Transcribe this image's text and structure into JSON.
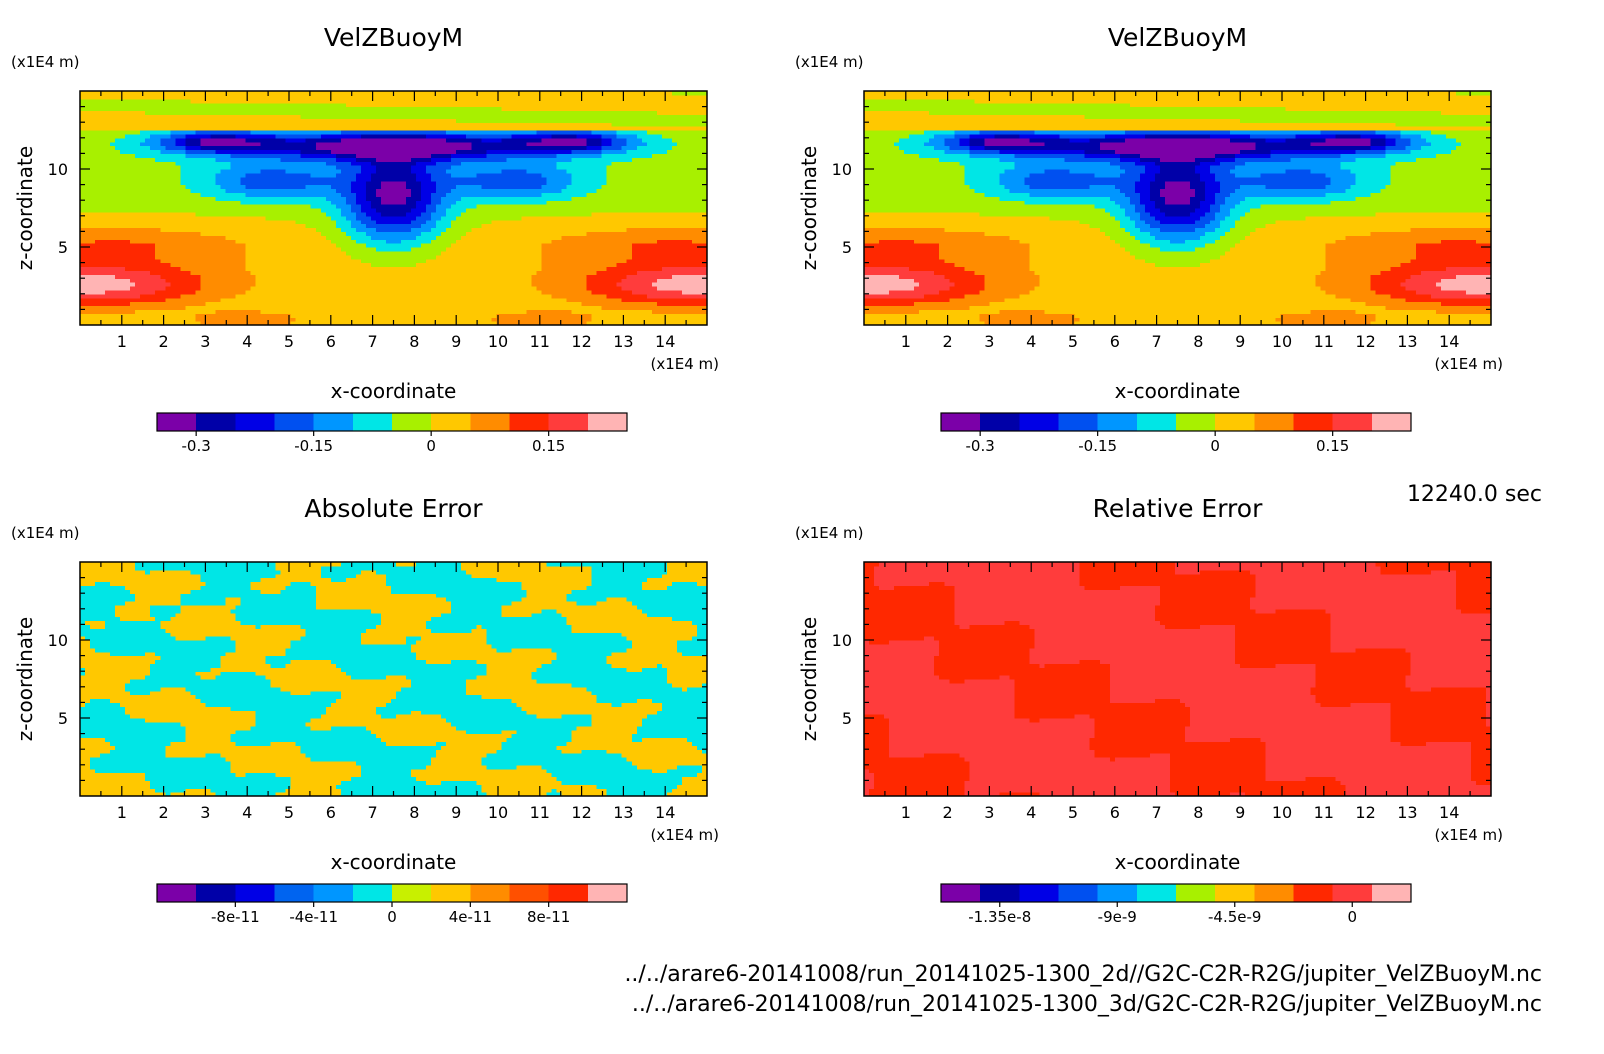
{
  "time_label": "12240.0 sec",
  "source_files": [
    "../../arare6-20141008/run_20141025-1300_2d//G2C-C2R-R2G/jupiter_VelZBuoyM.nc",
    "../../arare6-20141008/run_20141025-1300_3d/G2C-C2R-R2G/jupiter_VelZBuoyM.nc"
  ],
  "chart_data": [
    {
      "type": "heatmap",
      "title": "VelZBuoyM",
      "xlabel": "x-coordinate",
      "ylabel": "z-coordinate",
      "x_unit": "(x1E4 m)",
      "y_unit": "(x1E4 m)",
      "xlim": [
        0,
        15
      ],
      "ylim": [
        0,
        15
      ],
      "x_ticks": [
        1,
        2,
        3,
        4,
        5,
        6,
        7,
        8,
        9,
        10,
        11,
        12,
        13,
        14
      ],
      "y_ticks": [
        5,
        10
      ],
      "field": "velzbuoy",
      "colorbar": {
        "colors": [
          "#7b00a8",
          "#0000a8",
          "#0000e6",
          "#0050f0",
          "#0096ff",
          "#00e6e6",
          "#a8f000",
          "#ffc800",
          "#ff8c00",
          "#ff2800",
          "#ff3c3c",
          "#ffb4b4"
        ],
        "min": -0.35,
        "max": 0.25,
        "tick_values": [
          -0.3,
          -0.15,
          0,
          0.15
        ],
        "tick_labels": [
          "-0.3",
          "-0.15",
          "0",
          "0.15"
        ]
      }
    },
    {
      "type": "heatmap",
      "title": "VelZBuoyM",
      "xlabel": "x-coordinate",
      "ylabel": "z-coordinate",
      "x_unit": "(x1E4 m)",
      "y_unit": "(x1E4 m)",
      "xlim": [
        0,
        15
      ],
      "ylim": [
        0,
        15
      ],
      "x_ticks": [
        1,
        2,
        3,
        4,
        5,
        6,
        7,
        8,
        9,
        10,
        11,
        12,
        13,
        14
      ],
      "y_ticks": [
        5,
        10
      ],
      "field": "velzbuoy",
      "colorbar": {
        "colors": [
          "#7b00a8",
          "#0000a8",
          "#0000e6",
          "#0050f0",
          "#0096ff",
          "#00e6e6",
          "#a8f000",
          "#ffc800",
          "#ff8c00",
          "#ff2800",
          "#ff3c3c",
          "#ffb4b4"
        ],
        "min": -0.35,
        "max": 0.25,
        "tick_values": [
          -0.3,
          -0.15,
          0,
          0.15
        ],
        "tick_labels": [
          "-0.3",
          "-0.15",
          "0",
          "0.15"
        ]
      }
    },
    {
      "type": "heatmap",
      "title": "Absolute Error",
      "xlabel": "x-coordinate",
      "ylabel": "z-coordinate",
      "x_unit": "(x1E4 m)",
      "y_unit": "(x1E4 m)",
      "xlim": [
        0,
        15
      ],
      "ylim": [
        0,
        15
      ],
      "x_ticks": [
        1,
        2,
        3,
        4,
        5,
        6,
        7,
        8,
        9,
        10,
        11,
        12,
        13,
        14
      ],
      "y_ticks": [
        5,
        10
      ],
      "field": "abserror",
      "colorbar": {
        "colors": [
          "#7b00a8",
          "#0000a8",
          "#0000e6",
          "#0064f0",
          "#0096ff",
          "#00e6e6",
          "#c8f000",
          "#ffc800",
          "#ff8c00",
          "#ff5000",
          "#ff2800",
          "#ffb4b4"
        ],
        "min": -1.2e-10,
        "max": 1.2e-10,
        "tick_values": [
          -8e-11,
          -4e-11,
          0,
          4e-11,
          8e-11
        ],
        "tick_labels": [
          "-8e-11",
          "-4e-11",
          "0",
          "4e-11",
          "8e-11"
        ]
      }
    },
    {
      "type": "heatmap",
      "title": "Relative Error",
      "xlabel": "x-coordinate",
      "ylabel": "z-coordinate",
      "x_unit": "(x1E4 m)",
      "y_unit": "(x1E4 m)",
      "xlim": [
        0,
        15
      ],
      "ylim": [
        0,
        15
      ],
      "x_ticks": [
        1,
        2,
        3,
        4,
        5,
        6,
        7,
        8,
        9,
        10,
        11,
        12,
        13,
        14
      ],
      "y_ticks": [
        5,
        10
      ],
      "field": "relerror",
      "colorbar": {
        "colors": [
          "#7b00a8",
          "#0000a8",
          "#0000e6",
          "#0050f0",
          "#0096ff",
          "#00e6e6",
          "#a8f000",
          "#ffc800",
          "#ff8c00",
          "#ff2800",
          "#ff3c3c",
          "#ffb4b4"
        ],
        "min": -1.575e-08,
        "max": 2.25e-09,
        "tick_values": [
          -1.35e-08,
          -9e-09,
          -4.5e-09,
          0
        ],
        "tick_labels": [
          "-1.35e-8",
          "-9e-9",
          "-4.5e-9",
          "0"
        ]
      }
    }
  ]
}
